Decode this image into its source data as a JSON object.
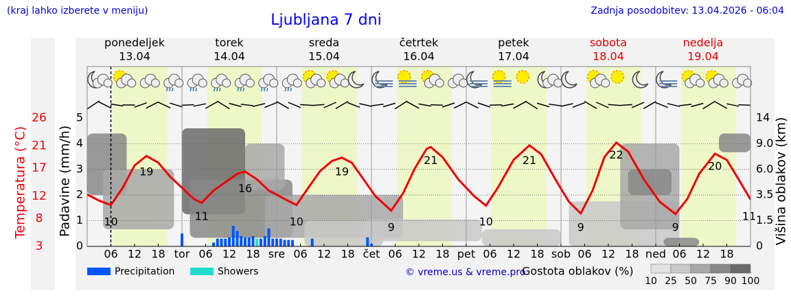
{
  "header": {
    "left": "(kraj lahko izberete v meniju)",
    "title": "Ljubljana 7 dni",
    "right": "Zadnja posodobitev: 13.04.2026 - 06:04"
  },
  "chart_data": {
    "type": "meteogram",
    "days": [
      {
        "name": "ponedeljek",
        "date": "13.04",
        "weekend": false
      },
      {
        "name": "torek",
        "date": "14.04",
        "weekend": false
      },
      {
        "name": "sreda",
        "date": "15.04",
        "weekend": false
      },
      {
        "name": "četrtek",
        "date": "16.04",
        "weekend": false
      },
      {
        "name": "petek",
        "date": "17.04",
        "weekend": false
      },
      {
        "name": "sobota",
        "date": "18.04",
        "weekend": true
      },
      {
        "name": "nedelja",
        "date": "19.04",
        "weekend": true
      }
    ],
    "weekend_color": "#dd0000",
    "xlim": [
      0,
      168
    ],
    "xticks": [
      {
        "value": 6,
        "label": "06"
      },
      12,
      18,
      {
        "value": 24,
        "label": "tor"
      },
      {
        "value": 30,
        "label": "06"
      },
      {
        "value": 36,
        "label": "12"
      },
      {
        "value": 42,
        "label": "18"
      },
      {
        "value": 48,
        "label": "sre"
      },
      {
        "value": 54,
        "label": "06"
      },
      {
        "value": 60,
        "label": "12"
      },
      {
        "value": 66,
        "label": "18"
      },
      {
        "value": 72,
        "label": "čet"
      },
      {
        "value": 78,
        "label": "06"
      },
      {
        "value": 84,
        "label": "12"
      },
      {
        "value": 90,
        "label": "18"
      },
      {
        "value": 96,
        "label": "pet"
      },
      {
        "value": 102,
        "label": "06"
      },
      {
        "value": 108,
        "label": "12"
      },
      {
        "value": 114,
        "label": "18"
      },
      {
        "value": 120,
        "label": "sob"
      },
      {
        "value": 126,
        "label": "06"
      },
      {
        "value": 132,
        "label": "12"
      },
      {
        "value": 138,
        "label": "18"
      },
      {
        "value": 144,
        "label": "ned"
      },
      {
        "value": 150,
        "label": "06"
      },
      {
        "value": 156,
        "label": "12"
      },
      {
        "value": 162,
        "label": "18"
      }
    ],
    "now": 6,
    "daylight": [
      6.4,
      20.3
    ],
    "ylabel": "Padavine (mm/h)",
    "ylim": [
      0,
      5
    ],
    "yticks": [
      0,
      1,
      2,
      3,
      4,
      5
    ],
    "templabel": "Temperatura (°C)",
    "templim": [
      3,
      26
    ],
    "tempticks": [
      3,
      8,
      12,
      17,
      21,
      26
    ],
    "y2label": "Višina oblakov (km)",
    "y2ticks": [
      0,
      {
        "value": 1.5,
        "label": "1.5"
      },
      {
        "value": 3.5,
        "label": "3.5"
      },
      {
        "value": 6,
        "label": "6.0"
      },
      {
        "value": 9,
        "label": "9.0"
      },
      14
    ],
    "grid": true,
    "temperature": {
      "color": "#ee0000",
      "x": [
        0,
        3,
        6,
        9,
        12,
        15,
        18,
        21,
        24,
        27,
        29,
        32,
        35,
        38,
        40,
        43,
        46,
        50,
        53,
        56,
        59,
        62,
        64.5,
        67,
        70,
        73,
        77,
        80,
        83,
        86,
        87,
        90,
        94,
        98,
        101,
        104,
        108,
        112,
        115,
        119,
        122,
        125,
        128,
        131,
        134,
        137,
        141,
        145,
        149,
        152,
        155,
        159,
        162,
        165,
        168
      ],
      "values": [
        12.3,
        11.2,
        10.4,
        13.5,
        17.5,
        19.2,
        18.0,
        15.5,
        13.5,
        11.5,
        10.8,
        13.0,
        14.5,
        16.0,
        16.4,
        15.0,
        13.0,
        11.5,
        10.4,
        13.5,
        16.5,
        18.3,
        18.9,
        18.0,
        15.0,
        12.0,
        9.4,
        12.5,
        17.0,
        20.5,
        20.8,
        19.0,
        15.0,
        12.0,
        10.3,
        13.5,
        18.5,
        21.1,
        19.5,
        14.5,
        11.0,
        8.9,
        13.0,
        19.0,
        21.6,
        20.0,
        15.0,
        11.0,
        8.8,
        11.5,
        16.0,
        19.6,
        18.5,
        15.0,
        11.4
      ]
    },
    "temp_extremes": {
      "x": [
        6,
        15,
        29,
        40,
        53,
        64.5,
        77,
        87,
        101,
        112,
        125,
        134,
        149,
        159,
        168
      ],
      "values": [
        10,
        19,
        11,
        16,
        10,
        19,
        9,
        21,
        10,
        21,
        9,
        22,
        9,
        20,
        11
      ]
    },
    "series": [
      {
        "name": "Precipitation",
        "color": "#0055ff",
        "x": [
          24,
          32,
          33,
          34,
          35,
          36,
          37,
          38,
          39,
          40,
          41,
          42,
          44,
          45,
          46,
          47,
          48,
          49,
          50,
          51,
          52,
          57,
          71,
          72
        ],
        "values": [
          0.5,
          0.15,
          0.3,
          0.3,
          0.3,
          0.35,
          0.8,
          0.6,
          0.4,
          0.35,
          0.35,
          0.4,
          0.3,
          0.4,
          0.7,
          0.3,
          0.3,
          0.3,
          0.25,
          0.25,
          0.25,
          0.3,
          0.35,
          0.1
        ]
      },
      {
        "name": "Showers",
        "color": "#22ddcc",
        "x": [
          43
        ],
        "values": [
          0.3
        ]
      }
    ],
    "clouds": {
      "label": "Gostota oblakov (%)",
      "levels": [
        10,
        25,
        50,
        75,
        90,
        100
      ],
      "colors": [
        "#e2e2e2",
        "#c8c8c8",
        "#a8a8a8",
        "#888888",
        "#6a6a6a",
        "#555555"
      ],
      "blobs": [
        {
          "x": [
            0,
            10
          ],
          "km": [
            3.5,
            11
          ],
          "density": 75
        },
        {
          "x": [
            4,
            22
          ],
          "km": [
            1,
            6
          ],
          "density": 50
        },
        {
          "x": [
            24,
            40
          ],
          "km": [
            2,
            12
          ],
          "density": 90
        },
        {
          "x": [
            26,
            52
          ],
          "km": [
            0.5,
            5
          ],
          "density": 75
        },
        {
          "x": [
            40,
            50
          ],
          "km": [
            4,
            9
          ],
          "density": 50
        },
        {
          "x": [
            45,
            80
          ],
          "km": [
            0.5,
            3.5
          ],
          "density": 50
        },
        {
          "x": [
            55,
            75
          ],
          "km": [
            0,
            1.5
          ],
          "density": 25
        },
        {
          "x": [
            70,
            100
          ],
          "km": [
            0.3,
            1.6
          ],
          "density": 25
        },
        {
          "x": [
            100,
            120
          ],
          "km": [
            0,
            1
          ],
          "density": 25
        },
        {
          "x": [
            122,
            150
          ],
          "km": [
            0,
            3
          ],
          "density": 25
        },
        {
          "x": [
            135,
            150
          ],
          "km": [
            1,
            9
          ],
          "density": 50
        },
        {
          "x": [
            137,
            148
          ],
          "km": [
            3.5,
            6
          ],
          "density": 75
        },
        {
          "x": [
            160,
            168
          ],
          "km": [
            8,
            11
          ],
          "density": 75
        },
        {
          "x": [
            146,
            155
          ],
          "km": [
            0,
            0.5
          ],
          "density": 75
        }
      ]
    },
    "icons": [
      "moon-cloud",
      "sun-cloud",
      "cloud",
      "rain",
      "rain",
      "rain",
      "rain",
      "rain",
      "rain",
      "sun-cloud",
      "sun-cloud",
      "moon",
      "moon-fog",
      "sun-fog",
      "sun-cloud",
      "cloud",
      "moon-fog",
      "sun-fog",
      "sun",
      "moon-cloud",
      "moon",
      "sun-cloud",
      "sun",
      "moon",
      "moon-fog",
      "sun-cloud",
      "sun-cloud",
      "cloud"
    ],
    "credit": "© vreme.us & vreme.pro"
  }
}
